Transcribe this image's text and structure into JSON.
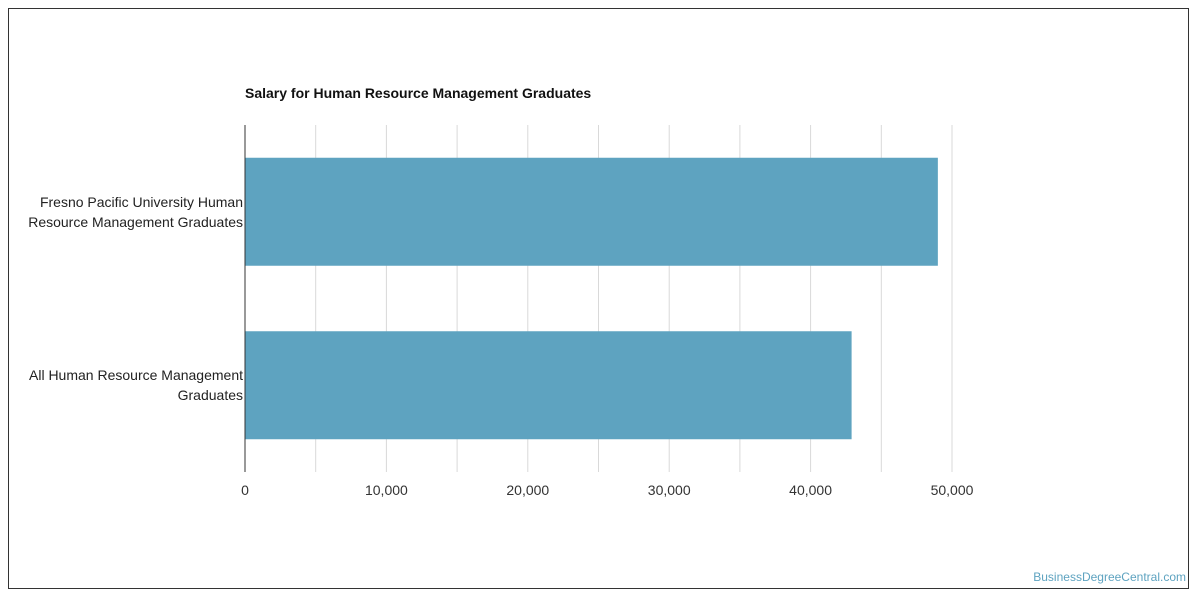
{
  "chart_data": {
    "type": "bar",
    "orientation": "horizontal",
    "title": "Salary for Human Resource Management Graduates",
    "categories": [
      "Fresno Pacific University Human Resource Management Graduates",
      "All Human Resource Management Graduates"
    ],
    "category_lines": [
      [
        "Fresno Pacific University Human",
        "Resource Management Graduates"
      ],
      [
        "All Human Resource Management",
        "Graduates"
      ]
    ],
    "values": [
      49000,
      42900
    ],
    "xlim": [
      0,
      50000
    ],
    "xticks": [
      0,
      10000,
      20000,
      30000,
      40000,
      50000
    ],
    "xtick_labels": [
      "0",
      "10,000",
      "20,000",
      "30,000",
      "40,000",
      "50,000"
    ],
    "grid": true,
    "bar_color": "#5ea3c0",
    "xlabel": "",
    "ylabel": ""
  },
  "footer": {
    "watermark": "BusinessDegreeCentral.com"
  }
}
